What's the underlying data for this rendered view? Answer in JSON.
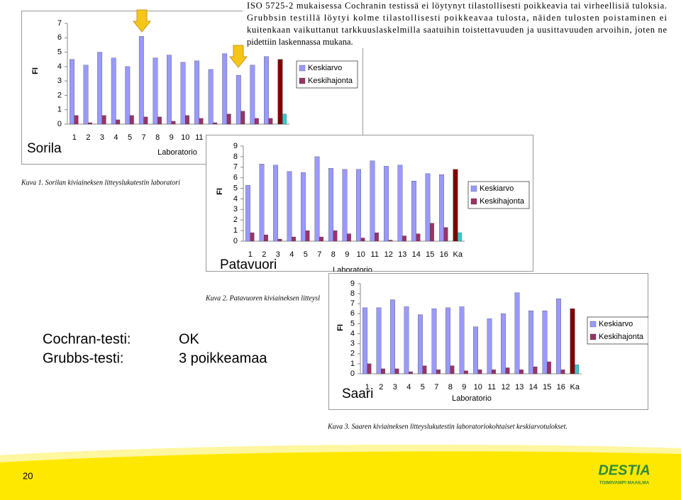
{
  "chart_data": [
    {
      "type": "bar",
      "title": "Sorila",
      "y_label": "FI",
      "x_label": "Laboratorio",
      "caption": "Kuva 1. Sorilan kiviaineksen litteyslukutestin laboratori",
      "categories": [
        "1",
        "2",
        "3",
        "4",
        "5",
        "7",
        "8",
        "9",
        "10",
        "11",
        null,
        null,
        null,
        null,
        null,
        null
      ],
      "series": [
        {
          "name": "Keskiarvo",
          "color": "#9999ff",
          "highlight_color": "#800000",
          "values": [
            4.5,
            4.1,
            5.0,
            4.6,
            4.0,
            6.1,
            4.6,
            4.8,
            4.3,
            4.4,
            3.8,
            4.9,
            3.4,
            4.1,
            4.7,
            4.5
          ]
        },
        {
          "name": "Keskihajonta",
          "color": "#993366",
          "highlight_color": "#33cccc",
          "values": [
            0.6,
            0.1,
            0.6,
            0.3,
            0.6,
            0.5,
            0.5,
            0.2,
            0.6,
            0.4,
            0.1,
            0.7,
            0.9,
            0.4,
            0.4,
            0.7
          ]
        }
      ],
      "ylim": [
        0,
        7
      ],
      "yticks": [
        0,
        1,
        2,
        3,
        4,
        5,
        6,
        7
      ]
    },
    {
      "type": "bar",
      "title": "Patavuori",
      "y_label": "FI",
      "x_label": "Laboratorio",
      "caption": "Kuva 2. Patavuoren kiviaineksen litteysl",
      "categories": [
        "1",
        "2",
        "3",
        "4",
        "5",
        "7",
        "8",
        "9",
        "10",
        "11",
        "12",
        "13",
        "14",
        "15",
        "16",
        "Ka"
      ],
      "series": [
        {
          "name": "Keskiarvo",
          "color": "#9999ff",
          "highlight_color": "#800000",
          "values": [
            5.3,
            7.3,
            7.2,
            6.6,
            6.5,
            8.0,
            6.9,
            6.8,
            6.8,
            7.6,
            7.1,
            7.2,
            5.7,
            6.4,
            6.3,
            6.8
          ]
        },
        {
          "name": "Keskihajonta",
          "color": "#993366",
          "highlight_color": "#33cccc",
          "values": [
            0.8,
            0.6,
            0.2,
            0.4,
            1.0,
            0.4,
            1.0,
            0.7,
            0.3,
            0.8,
            0.1,
            0.5,
            0.7,
            1.7,
            1.3,
            0.8
          ]
        }
      ],
      "ylim": [
        0,
        9
      ],
      "yticks": [
        0,
        1,
        2,
        3,
        4,
        5,
        6,
        7,
        8,
        9
      ]
    },
    {
      "type": "bar",
      "title": "Saari",
      "y_label": "FI",
      "x_label": "Laboratorio",
      "caption": "Kuva 3. Saaren kiviaineksen litteyslukutestin laboratoriokohtaiset keskiarvotulokset.",
      "categories": [
        "1",
        "2",
        "3",
        "4",
        "5",
        "7",
        "8",
        "9",
        "10",
        "11",
        "12",
        "13",
        "14",
        "15",
        "16",
        "Ka"
      ],
      "series": [
        {
          "name": "Keskiarvo",
          "color": "#9999ff",
          "highlight_color": "#800000",
          "values": [
            6.6,
            6.6,
            7.4,
            6.7,
            5.9,
            6.5,
            6.6,
            6.7,
            4.7,
            5.5,
            6.0,
            8.1,
            6.3,
            6.3,
            7.5,
            6.5
          ]
        },
        {
          "name": "Keskihajonta",
          "color": "#993366",
          "highlight_color": "#33cccc",
          "values": [
            1.0,
            0.5,
            0.5,
            0.2,
            0.8,
            0.4,
            0.8,
            0.3,
            0.4,
            0.4,
            0.6,
            0.4,
            0.7,
            1.2,
            0.4,
            0.9
          ]
        }
      ],
      "ylim": [
        0,
        9
      ],
      "yticks": [
        0,
        1,
        2,
        3,
        4,
        5,
        6,
        7,
        8,
        9
      ]
    }
  ],
  "paragraph": [
    "ISO 5725-2 mukaisessa Cochranin testissä ei löytynyt tilastollisesti poikkeavia tai virheellisiä tuloksia.",
    "Grubbsin testillä löytyi kolme tilastollisesti poikkeavaa tulosta, näiden tulosten poistaminen ei",
    "kuitenkaan vaikuttanut tarkkuuslaskelmilla saatuihin toistettavuuden ja uusittavuuden arvoihin, joten ne",
    "pidettiin laskennassa mukana."
  ],
  "tests": [
    [
      "Cochran-testi:",
      "OK"
    ],
    [
      "Grubbs-testi:",
      "3 poikkeamaa"
    ]
  ],
  "footer": {
    "page": "20",
    "logo": "DESTIA",
    "slogan": "TOIMIVAMPI MAAILMA"
  }
}
